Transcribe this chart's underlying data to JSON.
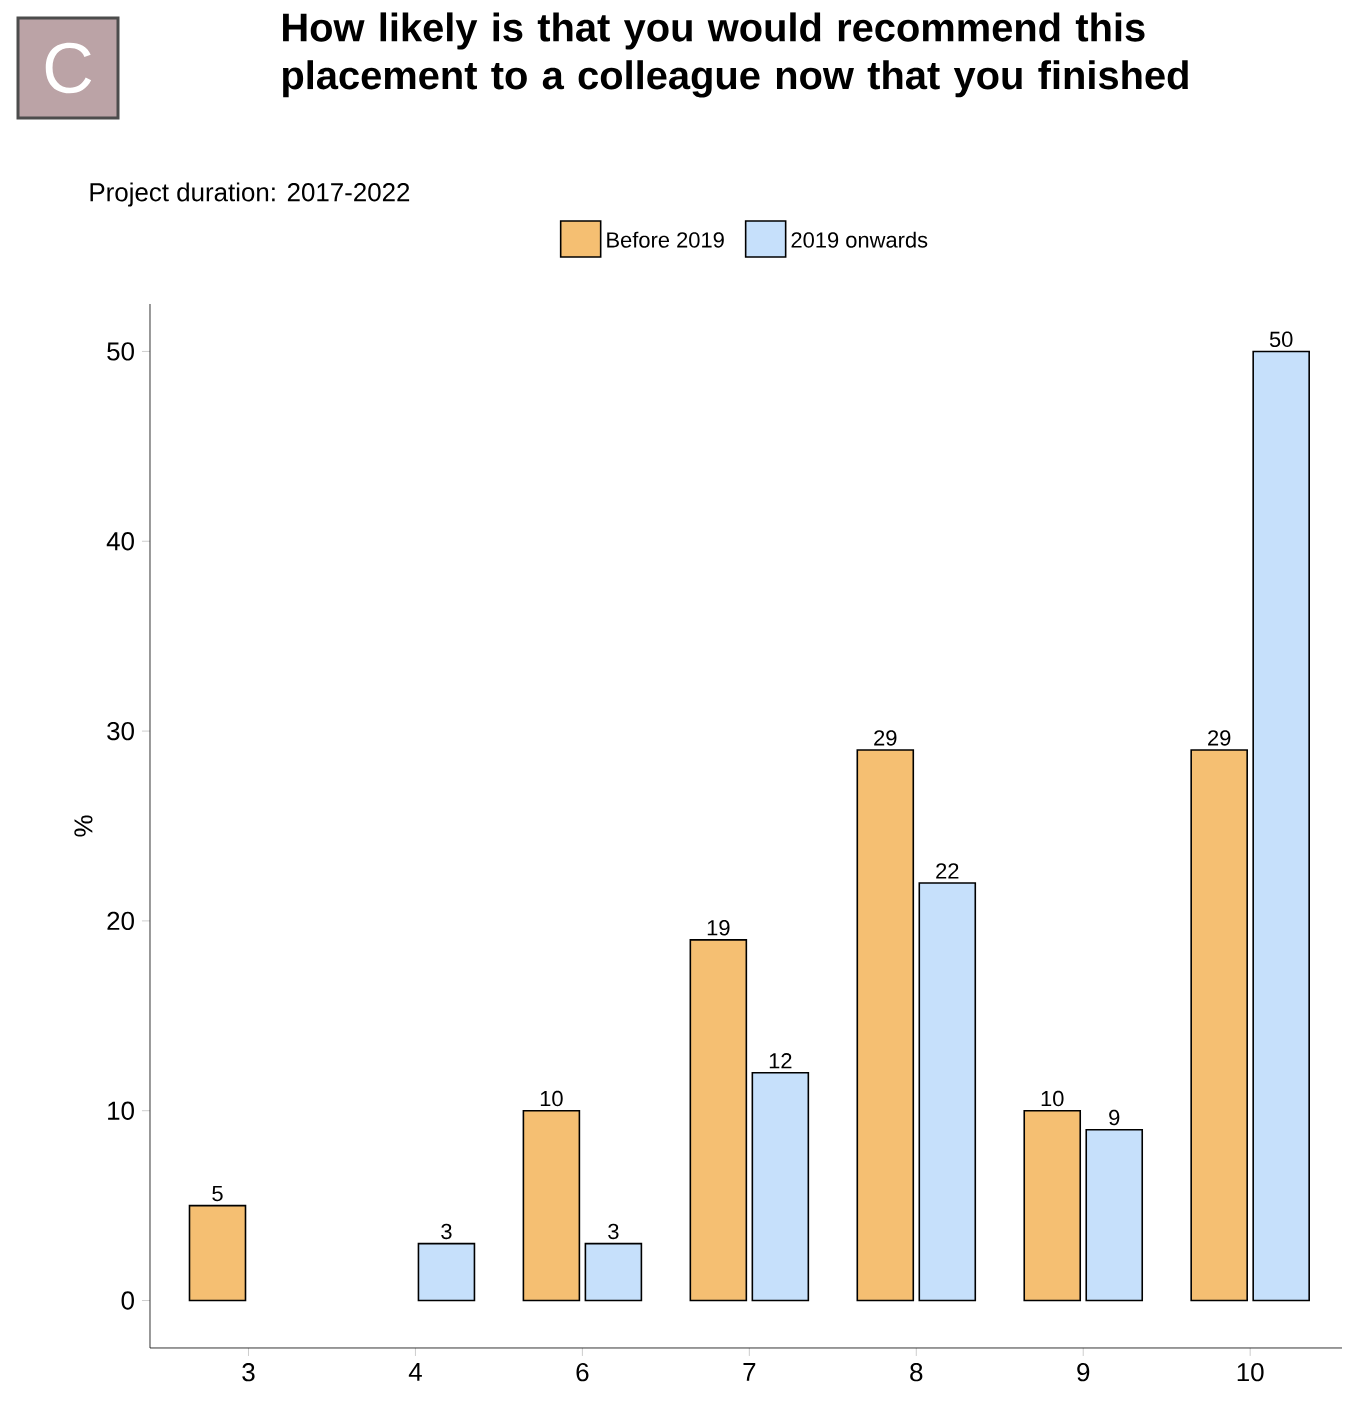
{
  "chart_data": {
    "type": "bar",
    "title": "How likely is that you would recommend this placement to a colleague now that you finished",
    "subtitle": "Project duration: 2017-2022",
    "ylabel": "%",
    "annotations": [
      "C"
    ],
    "categories": [
      "3",
      "4",
      "6",
      "7",
      "8",
      "9",
      "10"
    ],
    "series": [
      {
        "name": "Before 2019",
        "color": "#f5bf72",
        "values": [
          5,
          null,
          10,
          19,
          29,
          10,
          29
        ]
      },
      {
        "name": "2019 onwards",
        "color": "#c6e0fb",
        "values": [
          null,
          3,
          3,
          12,
          22,
          9,
          50
        ]
      }
    ],
    "ylim": [
      -2.5,
      52.5
    ],
    "yticks": [
      0,
      10,
      20,
      30,
      40,
      50
    ],
    "data_labels": true,
    "legend": "top",
    "grid": false
  }
}
